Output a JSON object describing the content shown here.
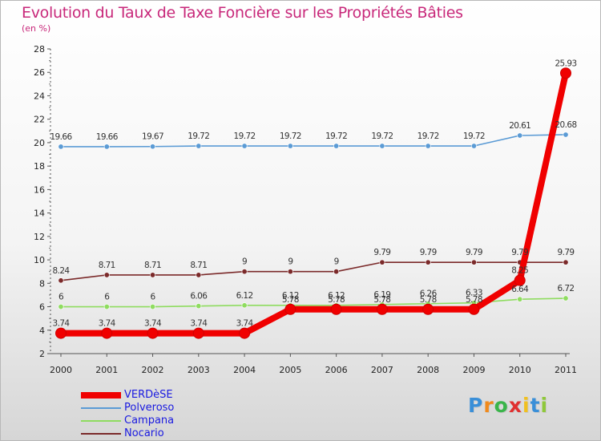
{
  "header": {
    "title": "Evolution du Taux de Taxe Foncière sur les Propriétés Bâties",
    "unit": "(en %)"
  },
  "chart_data": {
    "type": "line",
    "title": "Evolution du Taux de Taxe Foncière sur les Propriétés Bâties",
    "ylabel": "(en %)",
    "xlabel": "",
    "ylim": [
      2,
      28
    ],
    "yticks": [
      2,
      4,
      6,
      8,
      10,
      12,
      14,
      16,
      18,
      20,
      22,
      24,
      26,
      28
    ],
    "grid": false,
    "legend_position": "bottom-left",
    "x": [
      "2000",
      "2001",
      "2002",
      "2003",
      "2004",
      "2005",
      "2006",
      "2007",
      "2008",
      "2009",
      "2010",
      "2011"
    ],
    "series": [
      {
        "name": "Polveroso",
        "color": "#5b9bd5",
        "values": [
          19.66,
          19.66,
          19.67,
          19.72,
          19.72,
          19.72,
          19.72,
          19.72,
          19.72,
          19.72,
          20.61,
          20.68
        ],
        "labels": [
          "19.66",
          "19.66",
          "19.67",
          "19.72",
          "19.72",
          "19.72",
          "19.72",
          "19.72",
          "19.72",
          "19.72",
          "20.61",
          "20.68"
        ]
      },
      {
        "name": "Nocario",
        "color": "#7b2a2a",
        "values": [
          8.24,
          8.71,
          8.71,
          8.71,
          9,
          9,
          9,
          9.79,
          9.79,
          9.79,
          9.79,
          9.79
        ],
        "labels": [
          "8.24",
          "8.71",
          "8.71",
          "8.71",
          "9",
          "9",
          "9",
          "9.79",
          "9.79",
          "9.79",
          "9.79",
          "9.79"
        ]
      },
      {
        "name": "Campana",
        "color": "#8fdc60",
        "values": [
          6,
          6,
          6,
          6.06,
          6.12,
          6.12,
          6.12,
          6.19,
          6.26,
          6.33,
          6.64,
          6.72
        ],
        "labels": [
          "6",
          "6",
          "6",
          "6.06",
          "6.12",
          "6.12",
          "6.12",
          "6.19",
          "6.26",
          "6.33",
          "6.64",
          "6.72"
        ]
      },
      {
        "name": "VERDèSE",
        "color": "#f00000",
        "values": [
          3.74,
          3.74,
          3.74,
          3.74,
          3.74,
          5.78,
          5.78,
          5.78,
          5.78,
          5.78,
          8.25,
          25.93
        ],
        "labels": [
          "3.74",
          "3.74",
          "3.74",
          "3.74",
          "3.74",
          "5.78",
          "5.78",
          "5.78",
          "5.78",
          "5.78",
          "8.25",
          "25.93"
        ]
      }
    ]
  },
  "legend": {
    "items": [
      {
        "label": "VERDèSE",
        "color": "#f00000"
      },
      {
        "label": "Polveroso",
        "color": "#5b9bd5"
      },
      {
        "label": "Campana",
        "color": "#8fdc60"
      },
      {
        "label": "Nocario",
        "color": "#7b2a2a"
      }
    ]
  },
  "logo": {
    "letters": [
      "P",
      "r",
      "o",
      "x",
      "i",
      "t",
      "i"
    ],
    "colors": [
      "#3a8fd8",
      "#f08a1c",
      "#3ab54a",
      "#e03030",
      "#f0c020",
      "#3a8fd8",
      "#8fc83a"
    ]
  }
}
